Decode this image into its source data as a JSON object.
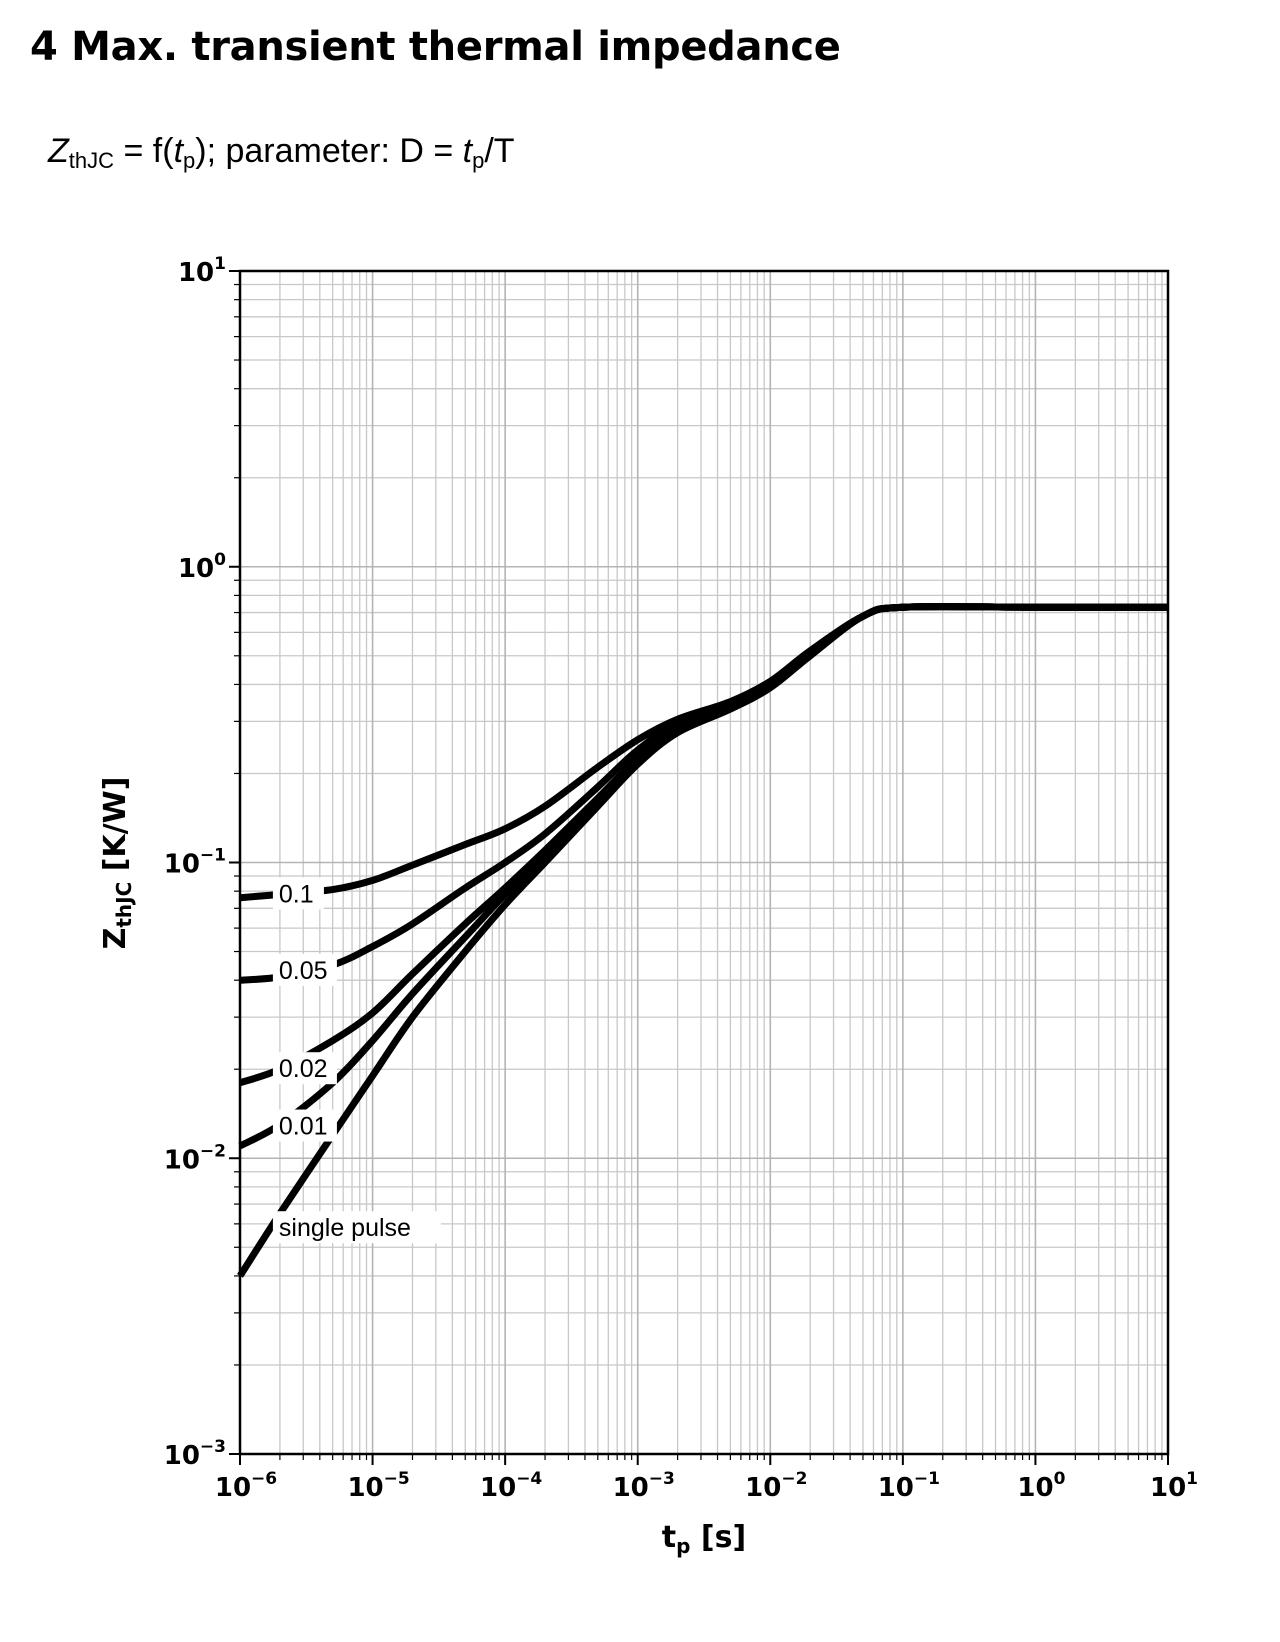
{
  "section": {
    "number": "4",
    "title": "Max. transient thermal impedance",
    "heading": "4 Max. transient thermal impedance"
  },
  "formula": {
    "z": "Z",
    "z_sub": "thJC",
    "eq": " = f(",
    "t": "t",
    "t_sub": "p",
    "rest": "); parameter: D = ",
    "t2": "t",
    "t2_sub": "p",
    "end": "/T"
  },
  "chart_data": {
    "type": "line",
    "title": "",
    "xlabel": "t",
    "xlabel_sub": "p",
    "xlabel_unit": " [s]",
    "ylabel": "Z",
    "ylabel_sub": "thJC",
    "ylabel_unit": " [K/W]",
    "xscale": "log",
    "yscale": "log",
    "xlim": [
      1e-06,
      10
    ],
    "ylim": [
      0.001,
      10
    ],
    "grid": true,
    "x_ticks": [
      {
        "base": "10",
        "exp": "−6",
        "value": 1e-06
      },
      {
        "base": "10",
        "exp": "−5",
        "value": 1e-05
      },
      {
        "base": "10",
        "exp": "−4",
        "value": 0.0001
      },
      {
        "base": "10",
        "exp": "−3",
        "value": 0.001
      },
      {
        "base": "10",
        "exp": "−2",
        "value": 0.01
      },
      {
        "base": "10",
        "exp": "−1",
        "value": 0.1
      },
      {
        "base": "10",
        "exp": "0",
        "value": 1
      },
      {
        "base": "10",
        "exp": "1",
        "value": 10
      }
    ],
    "y_ticks": [
      {
        "base": "10",
        "exp": "−3",
        "value": 0.001
      },
      {
        "base": "10",
        "exp": "−2",
        "value": 0.01
      },
      {
        "base": "10",
        "exp": "−1",
        "value": 0.1
      },
      {
        "base": "10",
        "exp": "0",
        "value": 1
      },
      {
        "base": "10",
        "exp": "1",
        "value": 10
      }
    ],
    "series": [
      {
        "name": "0.1",
        "x": [
          1e-06,
          2e-06,
          5e-06,
          1e-05,
          2e-05,
          5e-05,
          0.0001,
          0.0002,
          0.0005,
          0.001,
          0.002,
          0.005,
          0.01,
          0.02,
          0.05,
          0.1,
          1,
          10
        ],
        "y": [
          0.076,
          0.078,
          0.081,
          0.087,
          0.098,
          0.115,
          0.13,
          0.155,
          0.21,
          0.26,
          0.305,
          0.35,
          0.41,
          0.52,
          0.68,
          0.73,
          0.73,
          0.73
        ]
      },
      {
        "name": "0.05",
        "x": [
          1e-06,
          2e-06,
          5e-06,
          1e-05,
          2e-05,
          5e-05,
          0.0001,
          0.0002,
          0.0005,
          0.001,
          0.002,
          0.005,
          0.01,
          0.02,
          0.05,
          0.1,
          1,
          10
        ],
        "y": [
          0.04,
          0.041,
          0.045,
          0.052,
          0.062,
          0.082,
          0.1,
          0.125,
          0.18,
          0.24,
          0.295,
          0.345,
          0.405,
          0.515,
          0.68,
          0.73,
          0.73,
          0.73
        ]
      },
      {
        "name": "0.02",
        "x": [
          1e-06,
          2e-06,
          5e-06,
          1e-05,
          2e-05,
          5e-05,
          0.0001,
          0.0002,
          0.0005,
          0.001,
          0.002,
          0.005,
          0.01,
          0.02,
          0.05,
          0.1,
          1,
          10
        ],
        "y": [
          0.018,
          0.02,
          0.025,
          0.031,
          0.042,
          0.062,
          0.082,
          0.11,
          0.165,
          0.225,
          0.285,
          0.34,
          0.4,
          0.51,
          0.68,
          0.73,
          0.73,
          0.73
        ]
      },
      {
        "name": "0.01",
        "x": [
          1e-06,
          2e-06,
          5e-06,
          1e-05,
          2e-05,
          5e-05,
          0.0001,
          0.0002,
          0.0005,
          0.001,
          0.002,
          0.005,
          0.01,
          0.02,
          0.05,
          0.1,
          1,
          10
        ],
        "y": [
          0.011,
          0.013,
          0.018,
          0.025,
          0.036,
          0.056,
          0.078,
          0.105,
          0.16,
          0.22,
          0.28,
          0.335,
          0.395,
          0.505,
          0.68,
          0.73,
          0.73,
          0.73
        ]
      },
      {
        "name": "single pulse",
        "x": [
          1e-06,
          2e-06,
          5e-06,
          1e-05,
          2e-05,
          5e-05,
          0.0001,
          0.0002,
          0.0005,
          0.001,
          0.002,
          0.005,
          0.01,
          0.02,
          0.05,
          0.1,
          1,
          10
        ],
        "y": [
          0.004,
          0.0065,
          0.012,
          0.019,
          0.03,
          0.05,
          0.072,
          0.1,
          0.155,
          0.215,
          0.275,
          0.33,
          0.39,
          0.5,
          0.68,
          0.73,
          0.73,
          0.73
        ]
      }
    ],
    "curve_labels": [
      {
        "text": "0.1",
        "x": 2e-06,
        "y": 0.078
      },
      {
        "text": "0.05",
        "x": 2e-06,
        "y": 0.043
      },
      {
        "text": "0.02",
        "x": 2e-06,
        "y": 0.02
      },
      {
        "text": "0.01",
        "x": 2e-06,
        "y": 0.0128
      },
      {
        "text": "single pulse",
        "x": 2e-06,
        "y": 0.0058
      }
    ]
  }
}
